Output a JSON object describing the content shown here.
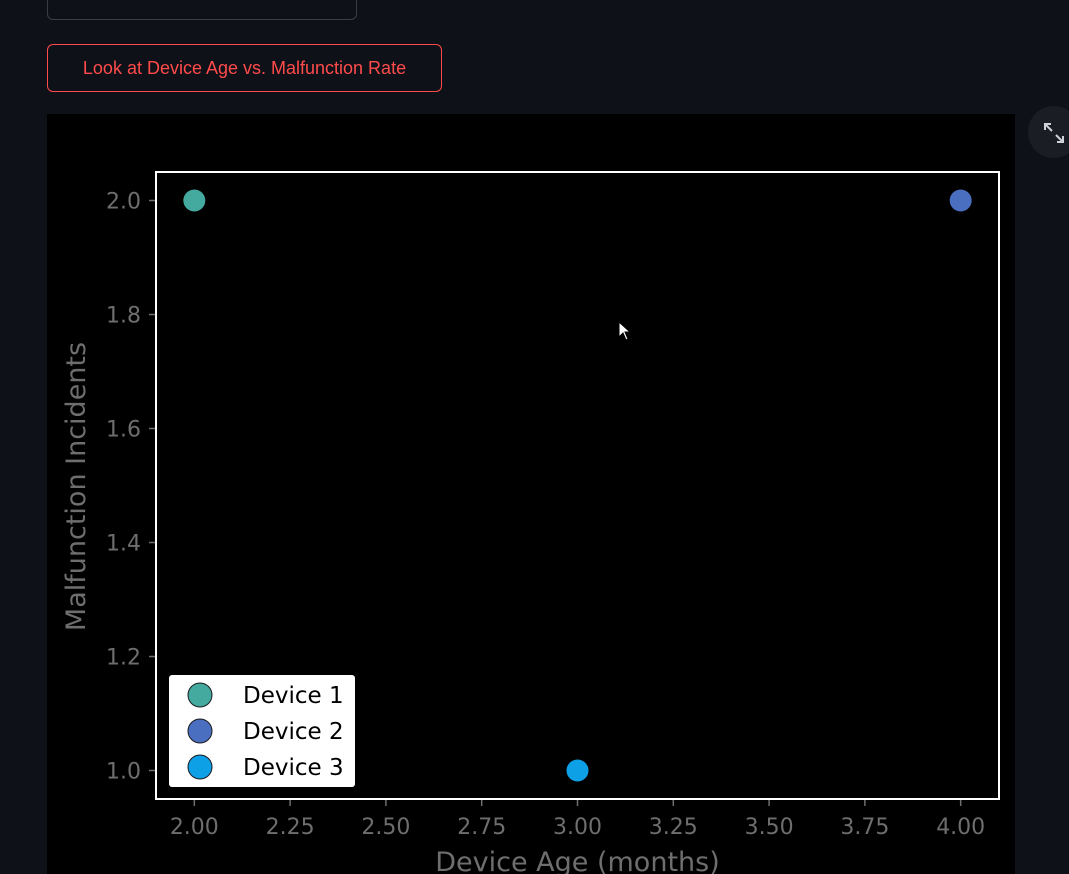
{
  "action_button": {
    "label": "Look at Device Age vs. Malfunction Rate"
  },
  "toolbar": {
    "fullscreen_icon": "expand-icon"
  },
  "colors": {
    "background": "#0e1117",
    "button_accent": "#ff4b4b",
    "axis_text": "#6e6e6e",
    "plot_background": "#000000",
    "plot_border": "#ffffff"
  },
  "chart_data": {
    "type": "scatter",
    "title": "",
    "xlabel": "Device Age (months)",
    "ylabel": "Malfunction Incidents",
    "xlim": [
      1.9,
      4.1
    ],
    "ylim": [
      0.95,
      2.05
    ],
    "x_ticks": [
      "2.00",
      "2.25",
      "2.50",
      "2.75",
      "3.00",
      "3.25",
      "3.50",
      "3.75",
      "4.00"
    ],
    "y_ticks": [
      "1.0",
      "1.2",
      "1.4",
      "1.6",
      "1.8",
      "2.0"
    ],
    "grid": false,
    "legend_position": "lower-left",
    "series": [
      {
        "name": "Device 1",
        "color": "#44aaa0",
        "points": [
          {
            "x": 2.0,
            "y": 2.0
          }
        ]
      },
      {
        "name": "Device 2",
        "color": "#4a6fc1",
        "points": [
          {
            "x": 4.0,
            "y": 2.0
          }
        ]
      },
      {
        "name": "Device 3",
        "color": "#0ea0e6",
        "points": [
          {
            "x": 3.0,
            "y": 1.0
          }
        ]
      }
    ]
  }
}
